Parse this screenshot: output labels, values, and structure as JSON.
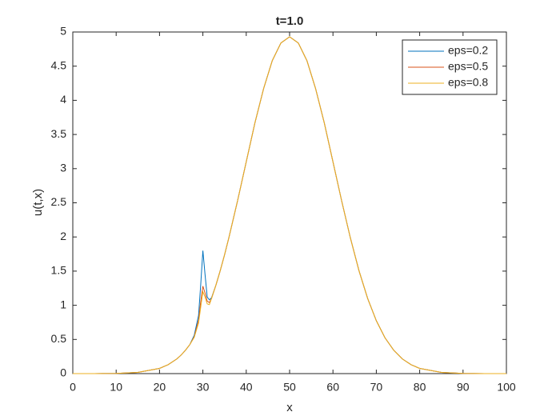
{
  "chart_data": {
    "type": "line",
    "title": "t=1.0",
    "x_label": "x",
    "y_label": "u(t,x)",
    "x": [
      0,
      5,
      10,
      15,
      20,
      22,
      24,
      25,
      26,
      27,
      28,
      29,
      29.5,
      30,
      30.5,
      31,
      31.5,
      32,
      33,
      34,
      35,
      36,
      38,
      40,
      42,
      44,
      46,
      48,
      50,
      52,
      54,
      56,
      58,
      60,
      62,
      64,
      66,
      68,
      70,
      72,
      74,
      76,
      78,
      80,
      85,
      90,
      95,
      100
    ],
    "series": [
      {
        "name": "eps=0.2",
        "color": "#0072bd",
        "values": [
          0,
          0,
          0.003,
          0.017,
          0.076,
          0.131,
          0.215,
          0.273,
          0.343,
          0.426,
          0.56,
          0.85,
          1.3,
          1.8,
          1.45,
          1.12,
          1.08,
          1.11,
          1.293,
          1.507,
          1.739,
          1.99,
          2.53,
          3.1,
          3.67,
          4.17,
          4.58,
          4.84,
          4.93,
          4.84,
          4.58,
          4.17,
          3.67,
          3.1,
          2.53,
          1.99,
          1.507,
          1.1,
          0.774,
          0.524,
          0.343,
          0.215,
          0.131,
          0.076,
          0.017,
          0.003,
          0,
          0
        ]
      },
      {
        "name": "eps=0.5",
        "color": "#d95319",
        "values": [
          0,
          0,
          0.003,
          0.017,
          0.076,
          0.131,
          0.215,
          0.273,
          0.343,
          0.426,
          0.54,
          0.78,
          1.05,
          1.28,
          1.18,
          1.06,
          1.04,
          1.1,
          1.293,
          1.507,
          1.739,
          1.99,
          2.53,
          3.1,
          3.67,
          4.17,
          4.58,
          4.84,
          4.93,
          4.84,
          4.58,
          4.17,
          3.67,
          3.1,
          2.53,
          1.99,
          1.507,
          1.1,
          0.774,
          0.524,
          0.343,
          0.215,
          0.131,
          0.076,
          0.017,
          0.003,
          0,
          0
        ]
      },
      {
        "name": "eps=0.8",
        "color": "#edb120",
        "values": [
          0,
          0,
          0.003,
          0.017,
          0.076,
          0.131,
          0.215,
          0.273,
          0.343,
          0.426,
          0.53,
          0.74,
          0.97,
          1.2,
          1.12,
          1.02,
          1.01,
          1.1,
          1.293,
          1.507,
          1.739,
          1.99,
          2.53,
          3.1,
          3.67,
          4.17,
          4.58,
          4.84,
          4.93,
          4.84,
          4.58,
          4.17,
          3.67,
          3.1,
          2.53,
          1.99,
          1.507,
          1.1,
          0.774,
          0.524,
          0.343,
          0.215,
          0.131,
          0.076,
          0.017,
          0.003,
          0,
          0
        ]
      }
    ],
    "xlim": [
      0,
      100
    ],
    "xticks": [
      0,
      10,
      20,
      30,
      40,
      50,
      60,
      70,
      80,
      90,
      100
    ],
    "ylim": [
      0,
      5
    ],
    "yticks": [
      0,
      0.5,
      1,
      1.5,
      2,
      2.5,
      3,
      3.5,
      4,
      4.5,
      5
    ],
    "legend": "upper-right"
  }
}
